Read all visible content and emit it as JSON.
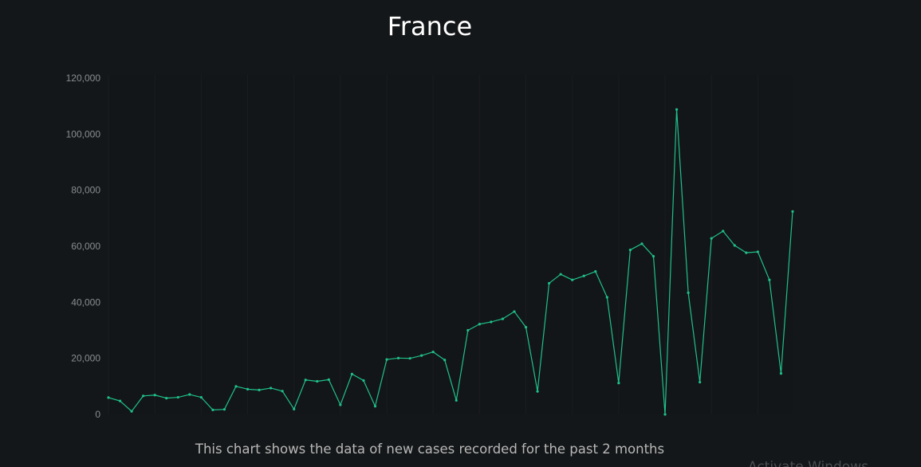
{
  "page": {
    "title": "France",
    "caption": "This chart shows the data of new cases recorded for the past 2 months",
    "watermark": "Activate Windows"
  },
  "colors": {
    "background": "#141719",
    "plot_background": "#131618",
    "line": "#1fc08a",
    "grid": "#1a1d20",
    "tick_text": "#8a8d90"
  },
  "chart_data": {
    "type": "line",
    "title": "France",
    "xlabel": "",
    "ylabel": "",
    "ylim": [
      0,
      120000
    ],
    "yticks": [
      0,
      20000,
      40000,
      60000,
      80000,
      100000,
      120000
    ],
    "ytick_labels": [
      "0",
      "20,000",
      "40,000",
      "60,000",
      "80,000",
      "100,000",
      "120,000"
    ],
    "x_tick_labels_shown": false,
    "grid": "vertical",
    "legend": "none",
    "series": [
      {
        "values": [
          6000,
          4800,
          1100,
          6600,
          6900,
          5800,
          6100,
          7100,
          6100,
          1600,
          1800,
          10000,
          9000,
          8700,
          9400,
          8300,
          1900,
          12300,
          11800,
          12400,
          3400,
          14400,
          12100,
          2900,
          19600,
          20100,
          20000,
          21000,
          22300,
          19400,
          5000,
          30000,
          32200,
          33000,
          34100,
          36700,
          31100,
          8200,
          46800,
          50000,
          48000,
          49400,
          51000,
          41800,
          11200,
          58700,
          60900,
          56400,
          0,
          108800,
          43400,
          11500,
          62800,
          65400,
          60300,
          57700,
          58000,
          48000,
          14600,
          72400
        ]
      }
    ]
  }
}
